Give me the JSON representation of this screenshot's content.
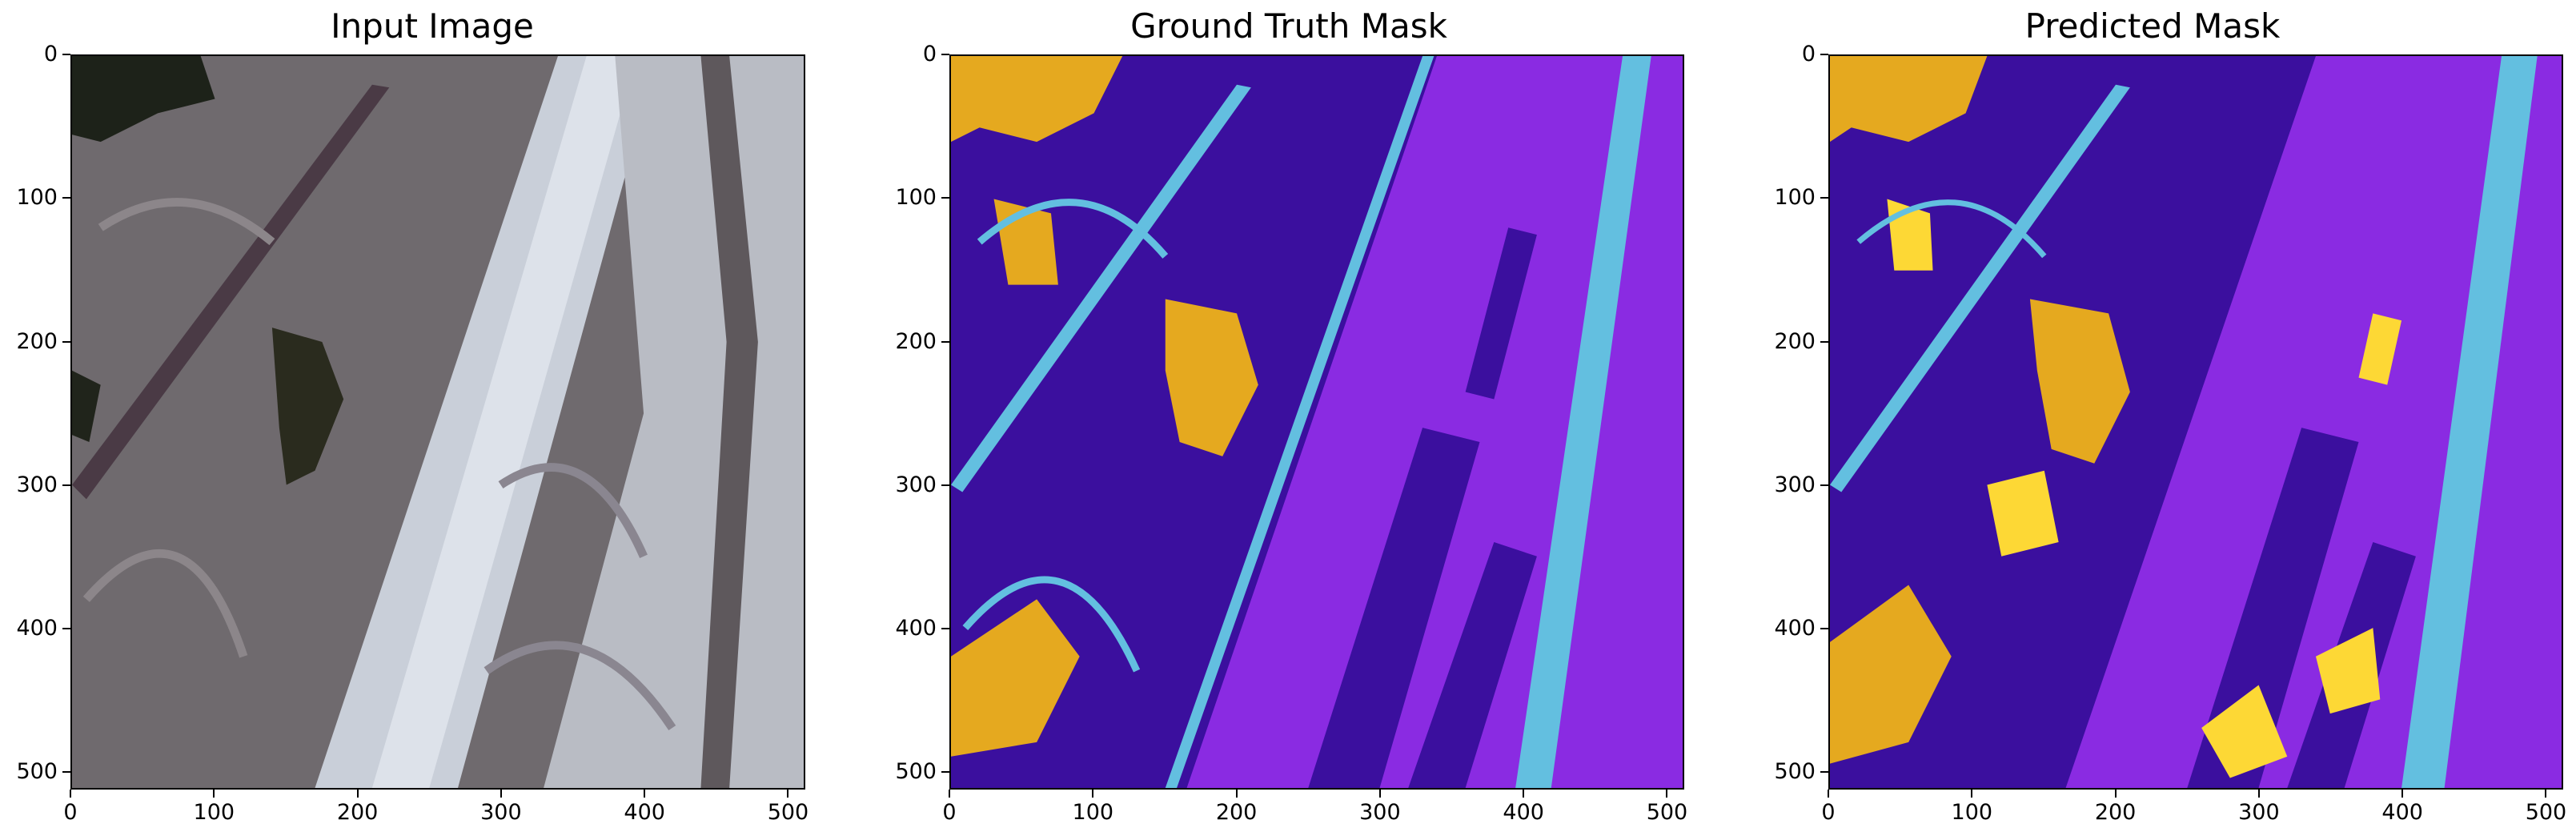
{
  "figure": {
    "panels": [
      {
        "title": "Input Image",
        "xticks": [
          "0",
          "100",
          "200",
          "300",
          "400",
          "500"
        ],
        "yticks": [
          "0",
          "100",
          "200",
          "300",
          "400",
          "500"
        ]
      },
      {
        "title": "Ground Truth Mask",
        "xticks": [
          "0",
          "100",
          "200",
          "300",
          "400",
          "500"
        ],
        "yticks": [
          "0",
          "100",
          "200",
          "300",
          "400",
          "500"
        ]
      },
      {
        "title": "Predicted Mask",
        "xticks": [
          "0",
          "100",
          "200",
          "300",
          "400",
          "500"
        ],
        "yticks": [
          "0",
          "100",
          "200",
          "300",
          "400",
          "500"
        ]
      }
    ],
    "axis_range": [
      0,
      512
    ],
    "mask_colors": {
      "background_purple": "#8a2be2",
      "dark_indigo": "#3b0f9e",
      "road_cyan": "#63bfe0",
      "vegetation_gold": "#e5a91f",
      "yellow": "#fdd835"
    },
    "photo_colors": {
      "residential": "#6f6a6e",
      "open_land": "#c9cfd9",
      "water": "#2a2b1e",
      "road": "#4a3a45"
    }
  }
}
